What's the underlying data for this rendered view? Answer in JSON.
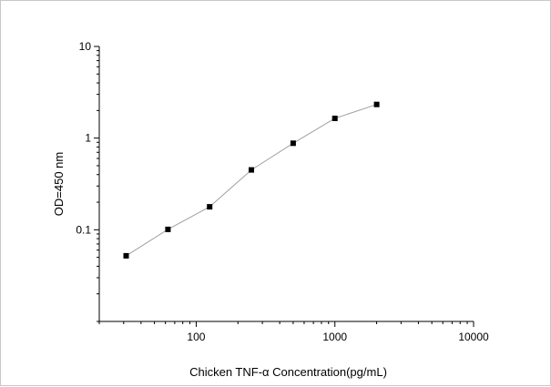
{
  "chart_data": {
    "type": "line",
    "title": "",
    "xlabel": "Chicken TNF-α  Concentration(pg/mL)",
    "ylabel": "OD=450 nm",
    "x_scale": "log",
    "y_scale": "log",
    "xlim": [
      20,
      10000
    ],
    "ylim": [
      0.01,
      10
    ],
    "x_ticks": [
      100,
      1000,
      10000
    ],
    "x_tick_labels": [
      "100",
      "1000",
      "10000"
    ],
    "y_ticks": [
      0.1,
      1,
      10
    ],
    "y_tick_labels": [
      "0.1",
      "1",
      "10"
    ],
    "grid": false,
    "legend": "none",
    "series": [
      {
        "x": [
          31.25,
          62.5,
          125,
          250,
          500,
          1000,
          2000
        ],
        "y": [
          0.052,
          0.101,
          0.178,
          0.45,
          0.88,
          1.64,
          2.33
        ],
        "marker": "square",
        "line_color": "#a0a0a0",
        "marker_color": "#000000"
      }
    ]
  }
}
